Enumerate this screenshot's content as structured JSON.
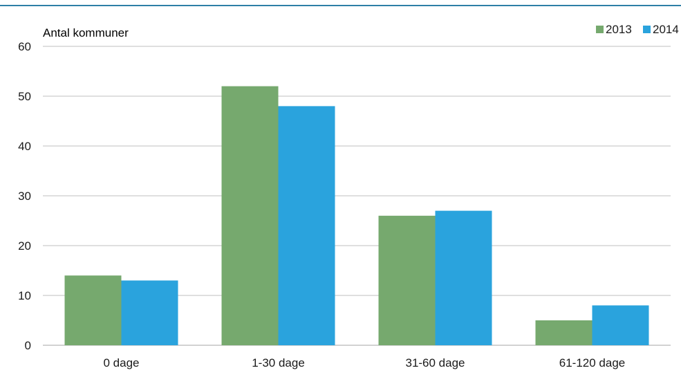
{
  "colors": {
    "series_2013": "#76a96e",
    "series_2014": "#2aa3dd",
    "grid": "#bfbfbf",
    "top_rule": "#2e7fa6"
  },
  "chart_data": {
    "type": "bar",
    "title": "",
    "xlabel": "",
    "ylabel": "Antal kommuner",
    "categories": [
      "0 dage",
      "1-30 dage",
      "31-60 dage",
      "61-120 dage"
    ],
    "series": [
      {
        "name": "2013",
        "values": [
          14,
          52,
          26,
          5
        ]
      },
      {
        "name": "2014",
        "values": [
          13,
          48,
          27,
          8
        ]
      }
    ],
    "ylim": [
      0,
      60
    ],
    "yticks": [
      0,
      10,
      20,
      30,
      40,
      50,
      60
    ],
    "grid": true,
    "legend_position": "top-right"
  }
}
